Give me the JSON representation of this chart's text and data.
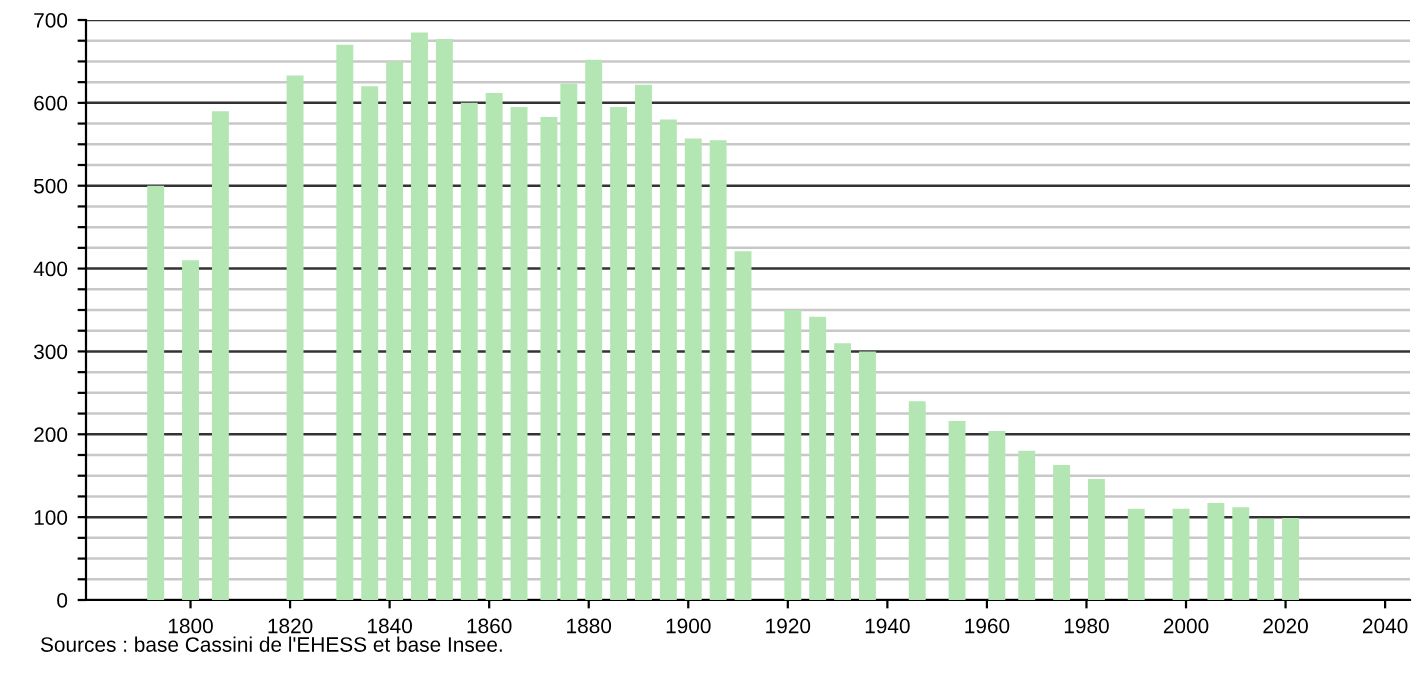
{
  "chart_data": {
    "type": "bar",
    "x": [
      1793,
      1800,
      1806,
      1821,
      1831,
      1836,
      1841,
      1846,
      1851,
      1856,
      1861,
      1866,
      1872,
      1876,
      1881,
      1886,
      1891,
      1896,
      1901,
      1906,
      1911,
      1921,
      1926,
      1931,
      1936,
      1946,
      1954,
      1962,
      1968,
      1975,
      1982,
      1990,
      1999,
      2006,
      2011,
      2016,
      2021
    ],
    "values": [
      500,
      410,
      590,
      633,
      670,
      620,
      650,
      685,
      677,
      600,
      612,
      595,
      583,
      623,
      652,
      595,
      622,
      580,
      557,
      555,
      421,
      350,
      342,
      310,
      300,
      240,
      216,
      204,
      180,
      163,
      146,
      110,
      110,
      117,
      112,
      98,
      99
    ],
    "color": "#b3e6b3",
    "xlim": [
      1779,
      2045
    ],
    "xticks": [
      1800,
      1820,
      1840,
      1860,
      1880,
      1900,
      1920,
      1940,
      1960,
      1980,
      2000,
      2020,
      2040
    ],
    "ylim": [
      0,
      700
    ],
    "yticks": [
      0,
      {
        "value": 25,
        "label": null
      },
      {
        "value": 50,
        "label": null
      },
      {
        "value": 75,
        "label": null
      },
      100,
      {
        "value": 125,
        "label": null
      },
      {
        "value": 150,
        "label": null
      },
      {
        "value": 175,
        "label": null
      },
      200,
      {
        "value": 225,
        "label": null
      },
      {
        "value": 250,
        "label": null
      },
      {
        "value": 275,
        "label": null
      },
      300,
      {
        "value": 325,
        "label": null
      },
      {
        "value": 350,
        "label": null
      },
      {
        "value": 375,
        "label": null
      },
      400,
      {
        "value": 425,
        "label": null
      },
      {
        "value": 450,
        "label": null
      },
      {
        "value": 475,
        "label": null
      },
      500,
      {
        "value": 525,
        "label": null
      },
      {
        "value": 550,
        "label": null
      },
      {
        "value": 575,
        "label": null
      },
      600,
      {
        "value": 625,
        "label": null
      },
      {
        "value": 650,
        "label": null
      },
      {
        "value": 675,
        "label": null
      },
      700
    ],
    "grid": "y",
    "annotations": [
      "Sources : base Cassini de l'EHESS et base Insee."
    ]
  }
}
